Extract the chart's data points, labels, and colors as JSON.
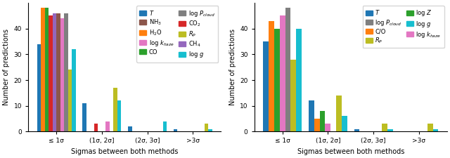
{
  "plot1": {
    "xlabel": "Sigmas between both methods",
    "ylabel": "Number of predictions",
    "categories": [
      "≤ 1σ",
      "(1σ, 2σ]",
      "(2σ, 3σ]",
      ">3σ"
    ],
    "series": [
      {
        "label": "$T$",
        "color": "#1f77b4",
        "values": [
          34,
          11,
          2,
          1
        ]
      },
      {
        "label": "H$_2$O",
        "color": "#ff7f0e",
        "values": [
          48,
          0,
          0,
          0
        ]
      },
      {
        "label": "CO",
        "color": "#2ca02c",
        "values": [
          48,
          0,
          0,
          0
        ]
      },
      {
        "label": "CO$_2$",
        "color": "#d62728",
        "values": [
          45,
          3,
          0,
          0
        ]
      },
      {
        "label": "CH$_4$",
        "color": "#9467bd",
        "values": [
          46,
          0,
          0,
          0
        ]
      },
      {
        "label": "NH$_3$",
        "color": "#8c564b",
        "values": [
          46,
          0,
          0,
          0
        ]
      },
      {
        "label": "log $k_{haze}$",
        "color": "#e377c2",
        "values": [
          44,
          4,
          0,
          0
        ]
      },
      {
        "label": "log $P_{cloud}$",
        "color": "#7f7f7f",
        "values": [
          46,
          0,
          0,
          0
        ]
      },
      {
        "label": "$R_P$",
        "color": "#bcbd22",
        "values": [
          24,
          17,
          0,
          3
        ]
      },
      {
        "label": "log $g$",
        "color": "#17becf",
        "values": [
          32,
          12,
          4,
          1
        ]
      }
    ],
    "ylim": [
      0,
      50
    ],
    "yticks": [
      0,
      10,
      20,
      30,
      40
    ],
    "legend_col1": [
      0,
      1,
      2,
      3,
      4
    ],
    "legend_col2": [
      5,
      6,
      7,
      8,
      9
    ]
  },
  "plot2": {
    "xlabel": "Sigmas between both methods",
    "ylabel": "Number of predictions",
    "categories": [
      "≤ 1σ",
      "(1σ, 2σ]",
      "(2σ, 3σ]",
      ">3σ"
    ],
    "series": [
      {
        "label": "$T$",
        "color": "#1f77b4",
        "values": [
          35,
          12,
          1,
          0
        ]
      },
      {
        "label": "C/O",
        "color": "#ff7f0e",
        "values": [
          43,
          5,
          0,
          0
        ]
      },
      {
        "label": "log $Z$",
        "color": "#2ca02c",
        "values": [
          40,
          8,
          0,
          0
        ]
      },
      {
        "label": "log $k_{haze}$",
        "color": "#e377c2",
        "values": [
          45,
          3,
          0,
          0
        ]
      },
      {
        "label": "log $P_{cloud}$",
        "color": "#7f7f7f",
        "values": [
          48,
          0,
          0,
          0
        ]
      },
      {
        "label": "$R_P$",
        "color": "#bcbd22",
        "values": [
          28,
          14,
          3,
          3
        ]
      },
      {
        "label": "log $g$",
        "color": "#17becf",
        "values": [
          40,
          6,
          1,
          1
        ]
      }
    ],
    "ylim": [
      0,
      50
    ],
    "yticks": [
      0,
      10,
      20,
      30,
      40
    ],
    "legend_col1": [
      0,
      1,
      2,
      3
    ],
    "legend_col2": [
      4,
      5,
      6
    ]
  },
  "figsize": [
    6.4,
    2.25
  ],
  "dpi": 100
}
